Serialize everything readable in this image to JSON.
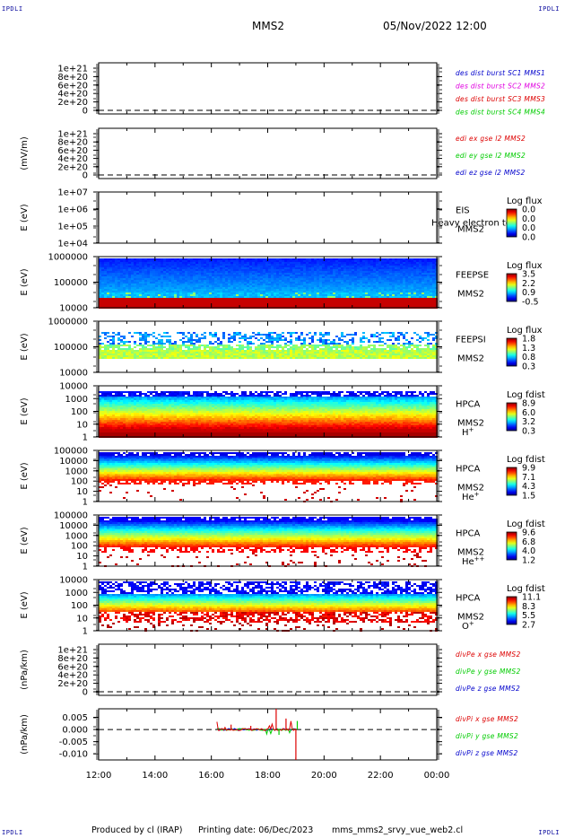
{
  "corners": {
    "tl": "IPDLI",
    "tr": "IPDLI",
    "bl": "IPDLI",
    "br": "IPDLI"
  },
  "header": {
    "spacecraft": "MMS2",
    "date": "05/Nov/2022 12:00"
  },
  "footer": {
    "producer": "Produced by cl (IRAP)",
    "print_date": "Printing date: 06/Dec/2023",
    "file": "mms_mms2_srvy_vue_web2.cl"
  },
  "colors": {
    "red": "#dd0000",
    "magenta": "#e000e0",
    "green": "#00cc00",
    "blue": "#0000cc"
  },
  "chart_data": {
    "type": "stacked-panels",
    "x_tick_labels": [
      "12:00",
      "14:00",
      "16:00",
      "18:00",
      "20:00",
      "22:00",
      "00:00"
    ],
    "panels": [
      {
        "type": "line",
        "ylabel": "",
        "tick_labels": [
          "1e+21",
          "8e+20",
          "6e+20",
          "4e+20",
          "2e+20",
          "0"
        ],
        "legend": [
          {
            "text": "des dist burst SC1 MMS1",
            "color": "#0000cc"
          },
          {
            "text": "des dist burst SC2 MMS2",
            "color": "#e000e0"
          },
          {
            "text": "des dist burst SC3 MMS3",
            "color": "#dd0000"
          },
          {
            "text": "des dist burst SC4 MMS4",
            "color": "#00cc00"
          }
        ]
      },
      {
        "type": "line",
        "ylabel": "(mV/m)",
        "tick_labels": [
          "1e+21",
          "8e+20",
          "6e+20",
          "4e+20",
          "2e+20",
          "0"
        ],
        "legend": [
          {
            "text": "edi ex gse l2 MMS2",
            "color": "#dd0000"
          },
          {
            "text": "edi ey gse l2 MMS2",
            "color": "#00cc00"
          },
          {
            "text": "edi ez gse l2 MMS2",
            "color": "#0000cc"
          }
        ]
      },
      {
        "type": "heatmap",
        "ylabel": "E (eV)",
        "tick_labels": [
          "1e+07",
          "1e+06",
          "1e+05",
          "1e+04"
        ],
        "instrument": [
          "EIS",
          "MMS2"
        ],
        "overlay": "Heavy electron tof",
        "cbar_title": "Log flux",
        "cbar": [
          "0.0",
          "0.0",
          "0.0",
          "0.0"
        ],
        "pattern": "empty"
      },
      {
        "type": "heatmap",
        "ylabel": "E (eV)",
        "tick_labels": [
          "1000000",
          "100000",
          "10000"
        ],
        "instrument": [
          "FEEPSE",
          "MMS2"
        ],
        "cbar_title": "Log flux",
        "cbar": [
          "3.5",
          "2.2",
          "0.9",
          "-0.5"
        ],
        "pattern": "feepse"
      },
      {
        "type": "heatmap",
        "ylabel": "E (eV)",
        "tick_labels": [
          "1000000",
          "100000",
          "10000"
        ],
        "instrument": [
          "FEEPSI",
          "MMS2"
        ],
        "cbar_title": "Log flux",
        "cbar": [
          "1.8",
          "1.3",
          "0.8",
          "0.3"
        ],
        "pattern": "feepsi"
      },
      {
        "type": "heatmap",
        "ylabel": "E (eV)",
        "tick_labels": [
          "10000",
          "1000",
          "100",
          "10",
          "1"
        ],
        "instrument": [
          "HPCA",
          "MMS2"
        ],
        "species": "H",
        "species_sup": "+",
        "cbar_title": "Log fdist",
        "cbar": [
          "8.9",
          "6.0",
          "3.2",
          "0.3"
        ],
        "pattern": "hplus"
      },
      {
        "type": "heatmap",
        "ylabel": "E (eV)",
        "tick_labels": [
          "100000",
          "10000",
          "1000",
          "100",
          "10",
          "1"
        ],
        "instrument": [
          "HPCA",
          "MMS2"
        ],
        "species": "He",
        "species_sup": "+",
        "cbar_title": "Log fdist",
        "cbar": [
          "9.9",
          "7.1",
          "4.3",
          "1.5"
        ],
        "pattern": "heplus"
      },
      {
        "type": "heatmap",
        "ylabel": "E (eV)",
        "tick_labels": [
          "100000",
          "10000",
          "1000",
          "100",
          "10",
          "1"
        ],
        "instrument": [
          "HPCA",
          "MMS2"
        ],
        "species": "He",
        "species_sup": "++",
        "cbar_title": "Log fdist",
        "cbar": [
          "9.6",
          "6.8",
          "4.0",
          "1.2"
        ],
        "pattern": "hepp"
      },
      {
        "type": "heatmap",
        "ylabel": "E (eV)",
        "tick_labels": [
          "10000",
          "1000",
          "100",
          "10",
          "1"
        ],
        "instrument": [
          "HPCA",
          "MMS2"
        ],
        "species": "O",
        "species_sup": "+",
        "cbar_title": "Log fdist",
        "cbar": [
          "11.1",
          "8.3",
          "5.5",
          "2.7"
        ],
        "pattern": "oplus"
      },
      {
        "type": "line",
        "ylabel": "(nPa/km)",
        "tick_labels": [
          "1e+21",
          "8e+20",
          "6e+20",
          "4e+20",
          "2e+20",
          "0"
        ],
        "legend": [
          {
            "text": "divPe x gse MMS2",
            "color": "#dd0000"
          },
          {
            "text": "divPe y gse MMS2",
            "color": "#00cc00"
          },
          {
            "text": "divPe z gse MMS2",
            "color": "#0000cc"
          }
        ]
      },
      {
        "type": "line",
        "ylabel": "(nPa/km)",
        "tick_labels": [
          "0.005",
          "0.000",
          "-0.005",
          "-0.010"
        ],
        "ylim": [
          -0.0125,
          0.0085
        ],
        "legend": [
          {
            "text": "divPi x gse MMS2",
            "color": "#dd0000"
          },
          {
            "text": "divPi y gse MMS2",
            "color": "#00cc00"
          },
          {
            "text": "divPi z gse MMS2",
            "color": "#0000cc"
          }
        ],
        "data_window_hours": [
          16.2,
          19.05
        ]
      }
    ]
  }
}
